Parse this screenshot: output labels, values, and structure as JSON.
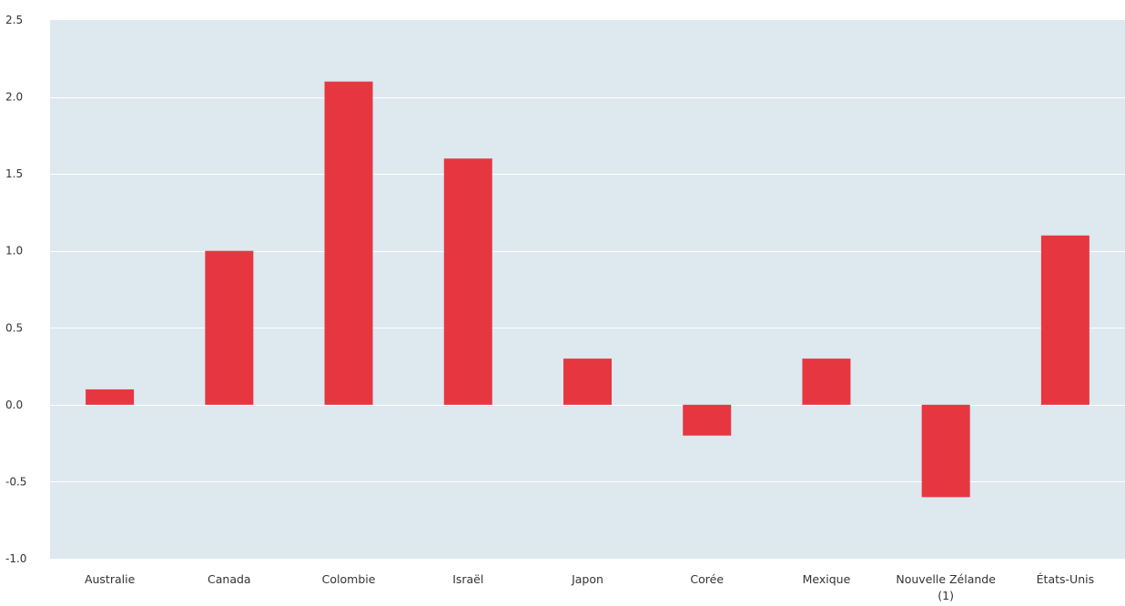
{
  "chart_data": {
    "type": "bar",
    "title": "",
    "xlabel": "",
    "ylabel": "",
    "categories": [
      [
        "Australie"
      ],
      [
        "Canada"
      ],
      [
        "Colombie"
      ],
      [
        "Israël"
      ],
      [
        "Japon"
      ],
      [
        "Corée"
      ],
      [
        "Mexique"
      ],
      [
        "Nouvelle Zélande",
        "(1)"
      ],
      [
        "États-Unis"
      ]
    ],
    "values": [
      0.1,
      1.0,
      2.1,
      1.6,
      0.3,
      -0.2,
      0.3,
      -0.6,
      1.1
    ],
    "ylim": [
      -1.0,
      2.5
    ],
    "yticks": [
      "-1.0",
      "-0.5",
      "0.0",
      "0.5",
      "1.0",
      "1.5",
      "2.0",
      "2.5"
    ],
    "grid": true,
    "legend": "none",
    "colors": {
      "bar": "#e63741",
      "plot_background": "#dde8ef",
      "gridline": "#ffffff",
      "text": "#333333"
    }
  }
}
